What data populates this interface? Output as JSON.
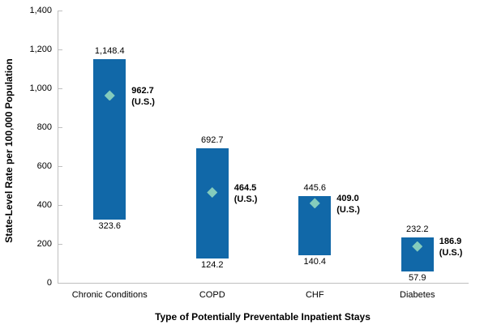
{
  "chart_data": {
    "type": "bar",
    "subtype": "floating-range-bars-with-us-diamond-markers",
    "categories": [
      "Chronic Conditions",
      "COPD",
      "CHF",
      "Diabetes"
    ],
    "series": [
      {
        "name": "State minimum rate",
        "values": [
          323.6,
          124.2,
          140.4,
          57.9
        ]
      },
      {
        "name": "State maximum rate",
        "values": [
          1148.4,
          692.7,
          445.6,
          232.2
        ]
      },
      {
        "name": "U.S. rate",
        "values": [
          962.7,
          464.5,
          409.0,
          186.9
        ]
      }
    ],
    "labels": {
      "max": [
        "1,148.4",
        "692.7",
        "445.6",
        "232.2"
      ],
      "min": [
        "323.6",
        "124.2",
        "140.4",
        "57.9"
      ],
      "us": [
        "962.7",
        "464.5",
        "409.0",
        "186.9"
      ],
      "us_suffix": "(U.S.)"
    },
    "xlabel": "Type of Potentially Preventable Inpatient Stays",
    "ylabel": "State-Level Rate per 100,000 Population",
    "ylim": [
      0,
      1400
    ],
    "ytick_step": 200,
    "ytick_labels": [
      "0",
      "200",
      "400",
      "600",
      "800",
      "1,000",
      "1,200",
      "1,400"
    ],
    "grid": false,
    "legend": "none",
    "colors": {
      "bar": "#1168A8",
      "marker": "#85CCBC",
      "axis": "#BFBFBF",
      "text": "#000000"
    }
  }
}
